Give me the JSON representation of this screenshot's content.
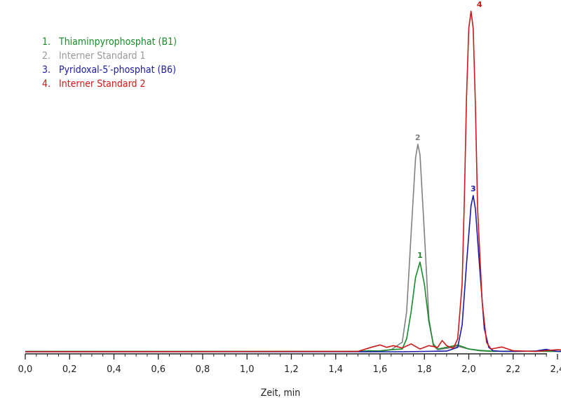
{
  "chart_data": {
    "type": "line",
    "xlabel": "Zeit, min",
    "ylabel": "",
    "xlim": [
      0.0,
      2.5
    ],
    "ylim": [
      0,
      100
    ],
    "x_ticks": [
      "0,0",
      "0,2",
      "0,4",
      "0,6",
      "0,8",
      "1,0",
      "1,2",
      "1,4",
      "1,6",
      "1,8",
      "2,0",
      "2,2",
      "2,4"
    ],
    "grid": false,
    "legend_position": "top-left",
    "series": [
      {
        "name": "Thiaminpyrophosphat (B1)",
        "number": "1.",
        "peak_label": "1",
        "color": "#1a8a2a",
        "peak": {
          "x": 1.78,
          "y": 26.5
        },
        "x": [
          0.0,
          1.5,
          1.55,
          1.6,
          1.65,
          1.7,
          1.72,
          1.74,
          1.76,
          1.78,
          1.8,
          1.82,
          1.84,
          1.86,
          1.9,
          1.95,
          2.0,
          2.05,
          2.1,
          2.2,
          2.3,
          2.4,
          2.5
        ],
        "y": [
          0.3,
          0.3,
          0.5,
          0.4,
          0.8,
          1.0,
          4,
          12,
          22,
          26.5,
          20,
          9,
          2.5,
          1.0,
          1.5,
          2.2,
          1.0,
          0.6,
          0.4,
          0.3,
          0.4,
          0.3,
          0.3
        ]
      },
      {
        "name": "Interner Standard 1",
        "number": "2.",
        "peak_label": "2",
        "color": "#808080",
        "peak": {
          "x": 1.77,
          "y": 61
        },
        "x": [
          0.0,
          1.5,
          1.6,
          1.65,
          1.7,
          1.72,
          1.74,
          1.76,
          1.77,
          1.78,
          1.8,
          1.82,
          1.84,
          1.86,
          1.9,
          1.95,
          2.0,
          2.05,
          2.1,
          2.2,
          2.3,
          2.4,
          2.5
        ],
        "y": [
          0.3,
          0.3,
          0.5,
          0.8,
          3,
          12,
          35,
          57,
          61,
          58,
          35,
          10,
          2,
          0.8,
          1.2,
          1.8,
          1.0,
          0.5,
          0.3,
          0.4,
          0.3,
          0.3,
          0.3
        ]
      },
      {
        "name": "Pyridoxal-5′-phosphat (B6)",
        "number": "3.",
        "peak_label": "3",
        "color": "#1a1aaa",
        "peak": {
          "x": 2.02,
          "y": 46
        },
        "x": [
          0.0,
          1.7,
          1.8,
          1.9,
          1.95,
          1.97,
          1.99,
          2.01,
          2.02,
          2.03,
          2.05,
          2.07,
          2.09,
          2.11,
          2.15,
          2.2,
          2.3,
          2.35,
          2.4,
          2.5
        ],
        "y": [
          0.2,
          0.2,
          0.3,
          0.4,
          1.5,
          8,
          26,
          43,
          46,
          42,
          24,
          7,
          1.5,
          0.5,
          0.3,
          0.3,
          0.4,
          0.9,
          0.3,
          0.2
        ]
      },
      {
        "name": "Interner Standard 2",
        "number": "4.",
        "peak_label": "4",
        "color": "#cc1a1a",
        "peak": {
          "x": 2.01,
          "y": 100
        },
        "x": [
          0.0,
          1.5,
          1.56,
          1.6,
          1.63,
          1.66,
          1.7,
          1.74,
          1.78,
          1.82,
          1.86,
          1.88,
          1.9,
          1.93,
          1.95,
          1.97,
          1.98,
          1.99,
          2.0,
          2.01,
          2.02,
          2.03,
          2.04,
          2.06,
          2.08,
          2.1,
          2.15,
          2.2,
          2.3,
          2.4,
          2.5
        ],
        "y": [
          0.2,
          0.3,
          1.5,
          2.2,
          1.5,
          2.0,
          1.3,
          2.5,
          1.0,
          2.0,
          1.5,
          3.5,
          2.0,
          1.2,
          4,
          20,
          45,
          75,
          95,
          100,
          95,
          72,
          42,
          15,
          3,
          1.0,
          1.6,
          0.5,
          0.3,
          0.8,
          0.3
        ]
      }
    ]
  }
}
